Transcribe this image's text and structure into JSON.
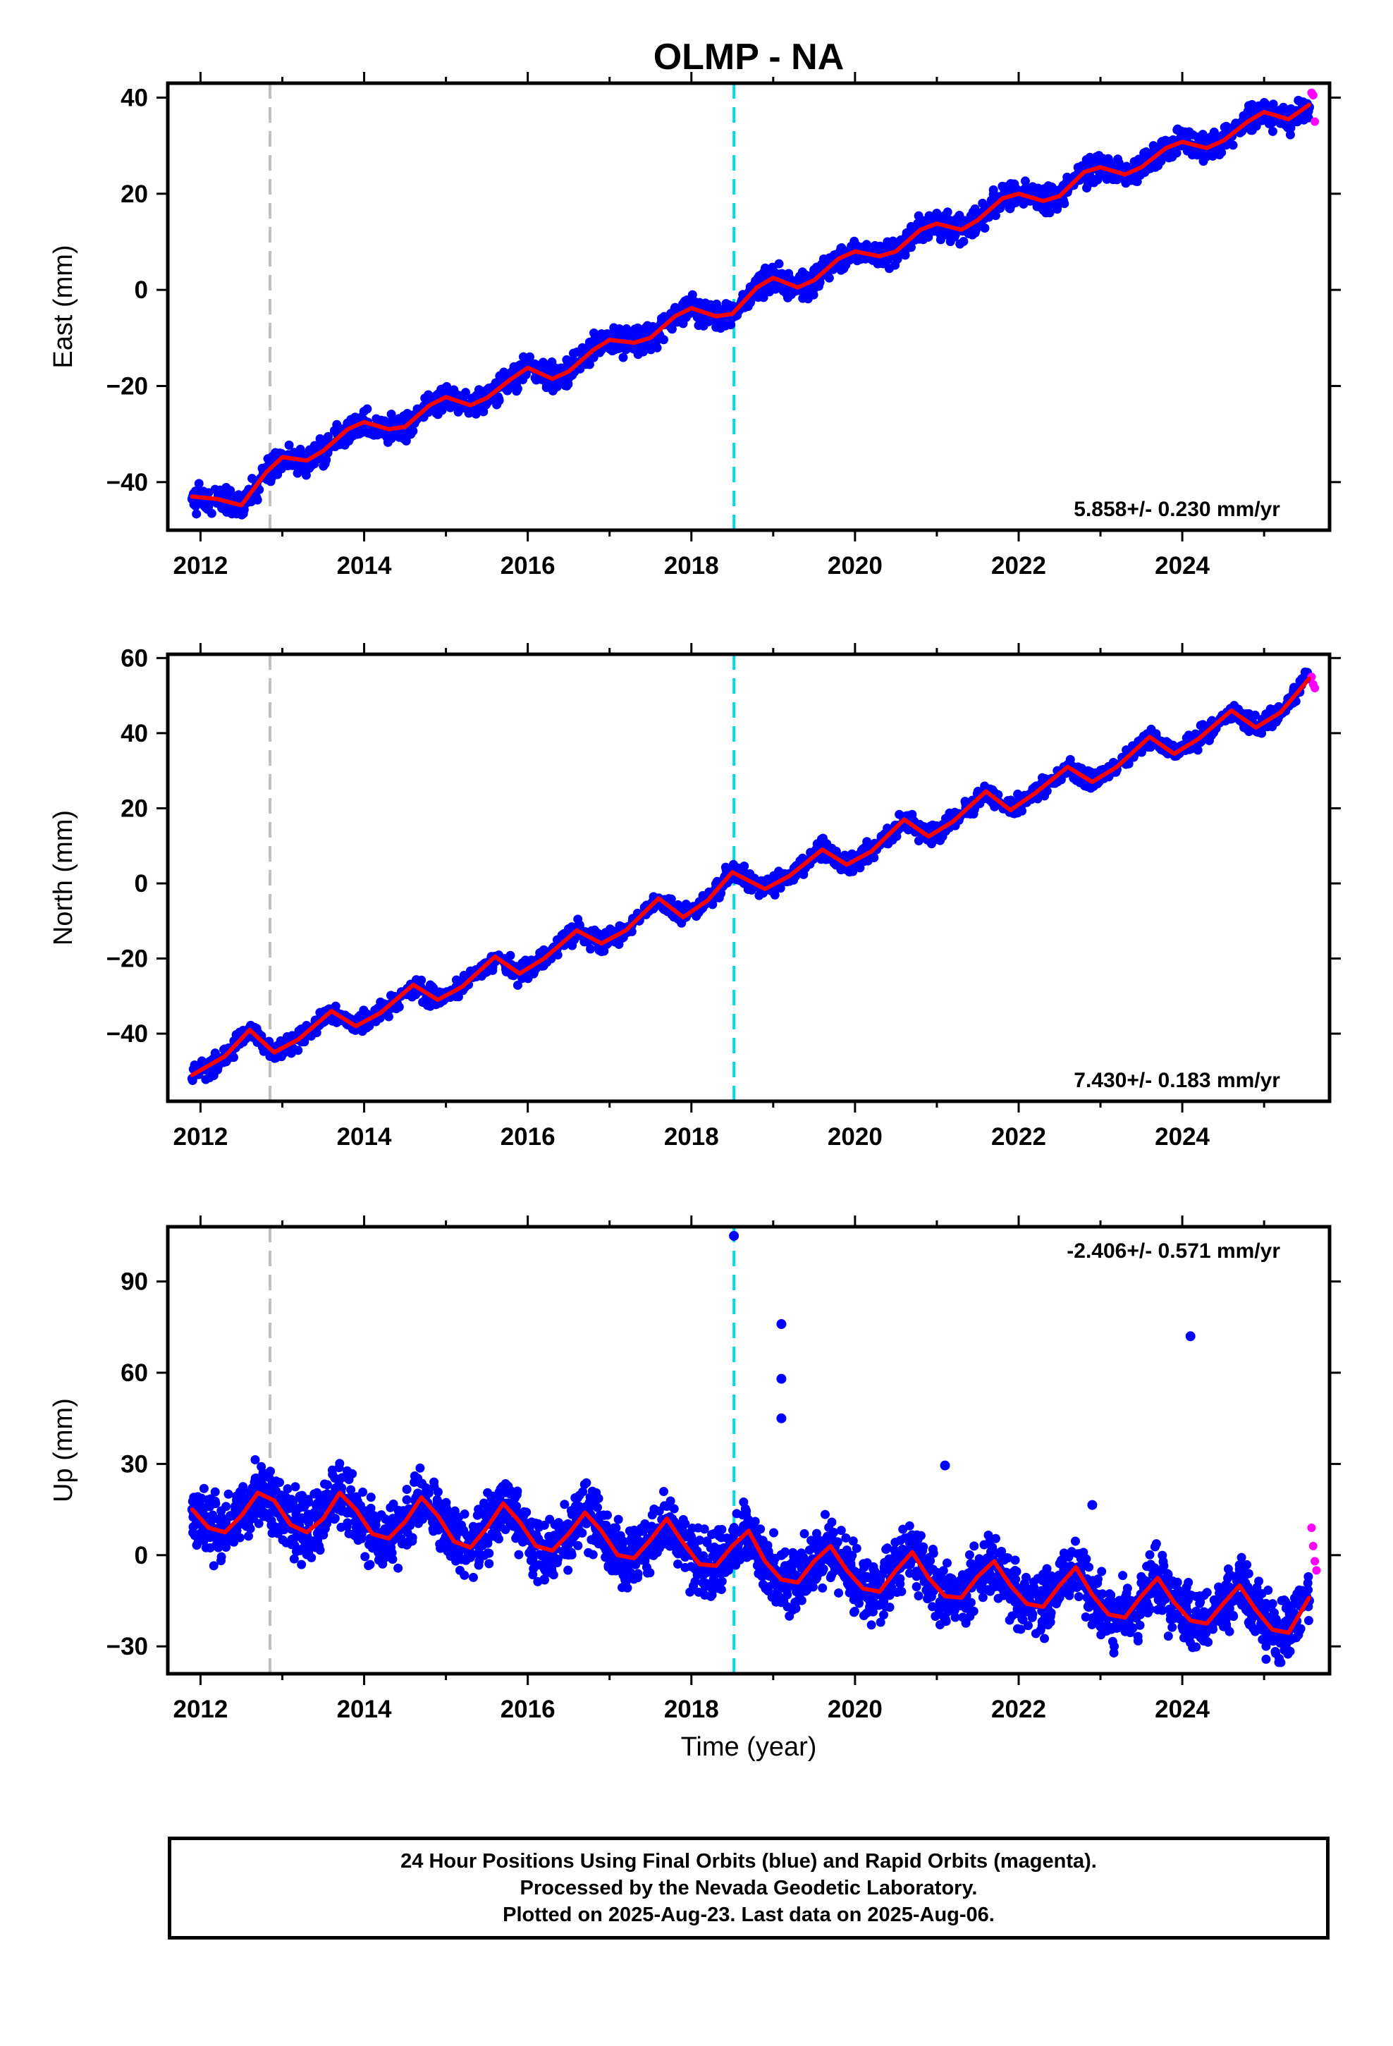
{
  "title": "OLMP - NA",
  "xlabel": "Time (year)",
  "footer": [
    "24 Hour Positions Using Final Orbits (blue) and Rapid Orbits (magenta).",
    "Processed by the Nevada Geodetic Laboratory.",
    "Plotted on 2025-Aug-23. Last data on 2025-Aug-06."
  ],
  "colors": {
    "final": "#0000ff",
    "rapid": "#ff00ff",
    "model": "#ff0000",
    "event_gray": "#c0c0c0",
    "event_cyan": "#00e0e0"
  },
  "chart_data": [
    {
      "type": "scatter",
      "ylabel": "East (mm)",
      "xlim": [
        2011.6,
        2025.8
      ],
      "ylim": [
        -50,
        43
      ],
      "xticks": [
        2012,
        2014,
        2016,
        2018,
        2020,
        2022,
        2024
      ],
      "yticks": [
        -40,
        -20,
        0,
        20,
        40
      ],
      "rate_label": "5.858+/- 0.230 mm/yr",
      "rate_position": "bottom-right",
      "event_lines": [
        2012.85,
        2018.52
      ],
      "series": [
        {
          "name": "Final Orbits",
          "style": "points",
          "x": [
            2011.9,
            2012.2,
            2012.5,
            2012.8,
            2013.0,
            2013.3,
            2013.5,
            2013.8,
            2014.0,
            2014.3,
            2014.5,
            2014.8,
            2015.0,
            2015.3,
            2015.5,
            2015.8,
            2016.0,
            2016.3,
            2016.5,
            2016.8,
            2017.0,
            2017.3,
            2017.5,
            2017.8,
            2018.0,
            2018.3,
            2018.5,
            2018.8,
            2019.0,
            2019.3,
            2019.5,
            2019.8,
            2020.0,
            2020.3,
            2020.5,
            2020.8,
            2021.0,
            2021.3,
            2021.5,
            2021.8,
            2022.0,
            2022.3,
            2022.5,
            2022.8,
            2023.0,
            2023.3,
            2023.5,
            2023.8,
            2024.0,
            2024.3,
            2024.5,
            2024.8,
            2025.0,
            2025.3,
            2025.55
          ],
          "y": [
            -43.5,
            -44.3,
            -44.0,
            -38.5,
            -35.0,
            -35.5,
            -33.0,
            -29.5,
            -27.5,
            -29.0,
            -28.0,
            -24.5,
            -22.0,
            -24.0,
            -22.0,
            -19.0,
            -16.0,
            -18.0,
            -16.5,
            -12.5,
            -10.5,
            -11.0,
            -9.5,
            -6.5,
            -3.5,
            -5.5,
            -4.5,
            0.0,
            2.5,
            0.5,
            2.5,
            6.0,
            8.0,
            7.5,
            8.5,
            12.0,
            13.5,
            12.5,
            15.0,
            18.5,
            20.0,
            18.5,
            20.0,
            24.5,
            25.5,
            24.5,
            26.0,
            29.0,
            30.5,
            29.0,
            31.0,
            34.5,
            37.0,
            35.0,
            38.0
          ]
        },
        {
          "name": "Rapid Orbits",
          "style": "points",
          "x": [
            2025.58,
            2025.6,
            2025.62
          ],
          "y": [
            41.0,
            40.5,
            35.0
          ]
        },
        {
          "name": "Model",
          "style": "line",
          "x": [
            2011.9,
            2012.2,
            2012.5,
            2012.8,
            2013.0,
            2013.3,
            2013.5,
            2013.8,
            2014.0,
            2014.3,
            2014.5,
            2014.8,
            2015.0,
            2015.3,
            2015.5,
            2015.8,
            2016.0,
            2016.3,
            2016.5,
            2016.8,
            2017.0,
            2017.3,
            2017.5,
            2017.8,
            2018.0,
            2018.3,
            2018.5,
            2018.8,
            2019.0,
            2019.3,
            2019.5,
            2019.8,
            2020.0,
            2020.3,
            2020.5,
            2020.8,
            2021.0,
            2021.3,
            2021.5,
            2021.8,
            2022.0,
            2022.3,
            2022.5,
            2022.8,
            2023.0,
            2023.3,
            2023.5,
            2023.8,
            2024.0,
            2024.3,
            2024.5,
            2024.8,
            2025.0,
            2025.3,
            2025.55
          ],
          "y": [
            -43.0,
            -43.5,
            -44.8,
            -38.0,
            -34.8,
            -35.5,
            -33.5,
            -29.0,
            -27.5,
            -29.0,
            -28.5,
            -24.0,
            -22.3,
            -24.0,
            -22.5,
            -18.5,
            -16.2,
            -18.5,
            -17.0,
            -12.5,
            -10.4,
            -11.0,
            -10.0,
            -5.5,
            -3.8,
            -5.5,
            -5.0,
            0.5,
            2.5,
            0.5,
            2.0,
            6.5,
            8.0,
            7.0,
            8.0,
            12.5,
            13.8,
            12.5,
            14.5,
            19.0,
            20.0,
            18.5,
            19.5,
            24.5,
            25.5,
            24.0,
            25.5,
            29.5,
            30.8,
            29.5,
            31.0,
            35.0,
            37.0,
            35.5,
            38.5
          ]
        }
      ]
    },
    {
      "type": "scatter",
      "ylabel": "North (mm)",
      "xlim": [
        2011.6,
        2025.8
      ],
      "ylim": [
        -58,
        61
      ],
      "xticks": [
        2012,
        2014,
        2016,
        2018,
        2020,
        2022,
        2024
      ],
      "yticks": [
        -40,
        -20,
        0,
        20,
        40,
        60
      ],
      "rate_label": "7.430+/- 0.183 mm/yr",
      "rate_position": "bottom-right",
      "event_lines": [
        2012.85,
        2018.52
      ],
      "series": [
        {
          "name": "Final Orbits",
          "style": "points",
          "x": [
            2011.9,
            2012.3,
            2012.6,
            2012.9,
            2013.2,
            2013.6,
            2013.9,
            2014.2,
            2014.6,
            2014.9,
            2015.2,
            2015.6,
            2015.9,
            2016.2,
            2016.6,
            2016.9,
            2017.2,
            2017.6,
            2017.9,
            2018.2,
            2018.5,
            2018.9,
            2019.2,
            2019.6,
            2019.9,
            2020.2,
            2020.6,
            2020.9,
            2021.2,
            2021.6,
            2021.9,
            2022.2,
            2022.6,
            2022.9,
            2023.2,
            2023.6,
            2023.9,
            2024.2,
            2024.6,
            2024.9,
            2025.2,
            2025.55
          ],
          "y": [
            -52.0,
            -46.0,
            -39.0,
            -44.5,
            -41.0,
            -34.0,
            -37.5,
            -34.5,
            -27.0,
            -30.5,
            -27.0,
            -19.5,
            -23.5,
            -20.0,
            -12.0,
            -16.0,
            -12.0,
            -4.0,
            -8.5,
            -4.0,
            3.0,
            -1.0,
            2.5,
            9.5,
            5.5,
            9.0,
            17.0,
            12.5,
            16.5,
            24.5,
            20.0,
            24.0,
            31.5,
            27.5,
            31.5,
            39.0,
            35.0,
            38.5,
            46.5,
            42.0,
            46.0,
            55.0
          ]
        },
        {
          "name": "Rapid Orbits",
          "style": "points",
          "x": [
            2025.58,
            2025.6,
            2025.62
          ],
          "y": [
            55.0,
            53.0,
            52.0
          ]
        },
        {
          "name": "Model",
          "style": "line",
          "x": [
            2011.9,
            2012.3,
            2012.6,
            2012.9,
            2013.2,
            2013.6,
            2013.9,
            2014.2,
            2014.6,
            2014.9,
            2015.2,
            2015.6,
            2015.9,
            2016.2,
            2016.6,
            2016.9,
            2017.2,
            2017.6,
            2017.9,
            2018.2,
            2018.5,
            2018.9,
            2019.2,
            2019.6,
            2019.9,
            2020.2,
            2020.6,
            2020.9,
            2021.2,
            2021.6,
            2021.9,
            2022.2,
            2022.6,
            2022.9,
            2023.2,
            2023.6,
            2023.9,
            2024.2,
            2024.6,
            2024.9,
            2025.2,
            2025.55
          ],
          "y": [
            -51.0,
            -46.0,
            -39.0,
            -45.0,
            -41.5,
            -34.0,
            -38.0,
            -34.5,
            -27.0,
            -31.0,
            -27.5,
            -19.5,
            -24.0,
            -20.0,
            -12.5,
            -16.0,
            -12.5,
            -4.0,
            -9.0,
            -4.5,
            3.0,
            -1.5,
            2.0,
            9.0,
            5.0,
            8.5,
            17.0,
            12.5,
            16.5,
            24.5,
            19.5,
            24.0,
            31.0,
            27.0,
            31.0,
            39.0,
            34.5,
            38.5,
            46.0,
            41.5,
            45.5,
            54.5
          ]
        }
      ]
    },
    {
      "type": "scatter",
      "ylabel": "Up (mm)",
      "xlim": [
        2011.6,
        2025.8
      ],
      "ylim": [
        -39,
        108
      ],
      "xticks": [
        2012,
        2014,
        2016,
        2018,
        2020,
        2022,
        2024
      ],
      "yticks": [
        -30,
        0,
        30,
        60,
        90
      ],
      "rate_label": "-2.406+/- 0.571 mm/yr",
      "rate_position": "top-right",
      "event_lines": [
        2012.85,
        2018.52
      ],
      "series": [
        {
          "name": "Final Orbits",
          "style": "points",
          "x": [
            2011.9,
            2012.3,
            2012.7,
            2013.0,
            2013.3,
            2013.7,
            2014.0,
            2014.3,
            2014.7,
            2015.0,
            2015.3,
            2015.7,
            2016.0,
            2016.3,
            2016.7,
            2017.0,
            2017.3,
            2017.7,
            2018.0,
            2018.3,
            2018.52,
            2018.7,
            2019.1,
            2019.1,
            2019.1,
            2019.1,
            2019.4,
            2019.7,
            2020.0,
            2020.3,
            2020.7,
            2021.0,
            2021.1,
            2021.3,
            2021.7,
            2022.0,
            2022.3,
            2022.7,
            2022.9,
            2023.0,
            2023.3,
            2023.7,
            2024.0,
            2024.1,
            2024.3,
            2024.7,
            2025.0,
            2025.3,
            2025.55
          ],
          "y": [
            15.0,
            8.0,
            20.0,
            12.0,
            8.0,
            21.0,
            10.0,
            6.0,
            19.0,
            6.0,
            3.0,
            17.0,
            5.0,
            2.0,
            13.0,
            3.0,
            -1.0,
            12.0,
            0.0,
            -4.0,
            105.0,
            8.0,
            76.0,
            58.0,
            45.0,
            0.0,
            -8.0,
            3.0,
            -7.0,
            -12.0,
            1.0,
            -10.0,
            29.5,
            -14.0,
            -2.0,
            -13.0,
            -17.0,
            -5.0,
            16.5,
            -16.0,
            -19.0,
            -7.0,
            -16.0,
            72.0,
            -21.0,
            -10.0,
            -18.0,
            -24.0,
            -15.0
          ]
        },
        {
          "name": "Rapid Orbits",
          "style": "points",
          "x": [
            2025.58,
            2025.6,
            2025.62,
            2025.64
          ],
          "y": [
            9.0,
            3.0,
            -2.0,
            -5.0
          ]
        },
        {
          "name": "Model",
          "style": "line",
          "x": [
            2011.9,
            2012.1,
            2012.3,
            2012.5,
            2012.7,
            2012.9,
            2013.1,
            2013.3,
            2013.5,
            2013.7,
            2013.9,
            2014.1,
            2014.3,
            2014.5,
            2014.7,
            2014.9,
            2015.1,
            2015.3,
            2015.5,
            2015.7,
            2015.9,
            2016.1,
            2016.3,
            2016.5,
            2016.7,
            2016.9,
            2017.1,
            2017.3,
            2017.5,
            2017.7,
            2017.9,
            2018.1,
            2018.3,
            2018.5,
            2018.7,
            2018.9,
            2019.1,
            2019.3,
            2019.5,
            2019.7,
            2019.9,
            2020.1,
            2020.3,
            2020.5,
            2020.7,
            2020.9,
            2021.1,
            2021.3,
            2021.5,
            2021.7,
            2021.9,
            2022.1,
            2022.3,
            2022.5,
            2022.7,
            2022.9,
            2023.1,
            2023.3,
            2023.5,
            2023.7,
            2023.9,
            2024.1,
            2024.3,
            2024.5,
            2024.7,
            2024.9,
            2025.1,
            2025.3,
            2025.55
          ],
          "y": [
            15.0,
            9.0,
            7.5,
            13.0,
            20.5,
            18.0,
            10.0,
            7.5,
            12.0,
            20.5,
            15.0,
            7.0,
            5.5,
            11.0,
            19.0,
            13.0,
            4.5,
            2.5,
            9.0,
            17.0,
            11.0,
            3.0,
            1.5,
            7.0,
            14.0,
            8.0,
            0.0,
            -1.0,
            5.0,
            12.0,
            4.0,
            -3.0,
            -3.5,
            3.0,
            8.0,
            -2.0,
            -8.0,
            -9.0,
            -2.0,
            3.0,
            -5.0,
            -11.0,
            -12.0,
            -5.0,
            1.0,
            -7.5,
            -13.5,
            -14.0,
            -7.0,
            -2.0,
            -10.0,
            -16.0,
            -17.0,
            -10.0,
            -4.0,
            -13.0,
            -19.5,
            -20.5,
            -13.5,
            -7.5,
            -15.5,
            -21.5,
            -22.5,
            -16.0,
            -10.0,
            -18.0,
            -24.5,
            -25.5,
            -14.0
          ]
        }
      ]
    }
  ]
}
